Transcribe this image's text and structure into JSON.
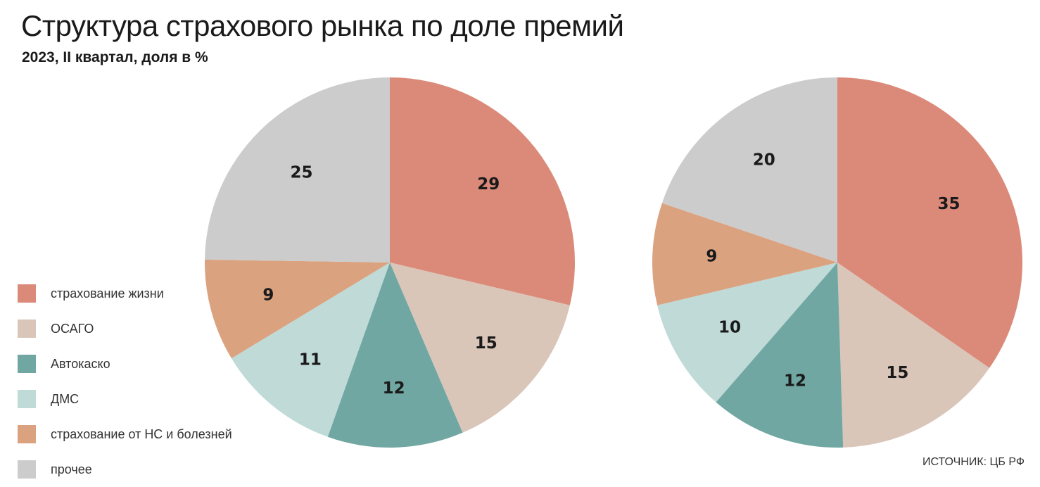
{
  "header": {
    "title": "Структура страхового рынка по доле премий",
    "subtitle": "2023, II квартал, доля в %"
  },
  "legend": [
    {
      "label": "страхование жизни",
      "color": "#DB8A79"
    },
    {
      "label": "ОСАГО",
      "color": "#DAC6B9"
    },
    {
      "label": "Автокаско",
      "color": "#71A7A2"
    },
    {
      "label": "ДМС",
      "color": "#BFDAD7"
    },
    {
      "label": "страхование от НС и болезней",
      "color": "#DBA27F"
    },
    {
      "label": "прочее",
      "color": "#CCCCCC"
    }
  ],
  "source": "ИСТОЧНИК: ЦБ РФ",
  "chart_data": [
    {
      "type": "pie",
      "title": "",
      "categories": [
        "страхование жизни",
        "ОСАГО",
        "Автокаско",
        "ДМС",
        "страхование от НС и болезней",
        "прочее"
      ],
      "values": [
        29,
        15,
        12,
        11,
        9,
        25
      ],
      "colors": [
        "#DB8A79",
        "#DAC6B9",
        "#71A7A2",
        "#BFDAD7",
        "#DBA27F",
        "#CCCCCC"
      ]
    },
    {
      "type": "pie",
      "title": "",
      "categories": [
        "страхование жизни",
        "ОСАГО",
        "Автокаско",
        "ДМС",
        "страхование от НС и болезней",
        "прочее"
      ],
      "values": [
        35,
        15,
        12,
        10,
        9,
        20
      ],
      "colors": [
        "#DB8A79",
        "#DAC6B9",
        "#71A7A2",
        "#BFDAD7",
        "#DBA27F",
        "#CCCCCC"
      ]
    }
  ]
}
